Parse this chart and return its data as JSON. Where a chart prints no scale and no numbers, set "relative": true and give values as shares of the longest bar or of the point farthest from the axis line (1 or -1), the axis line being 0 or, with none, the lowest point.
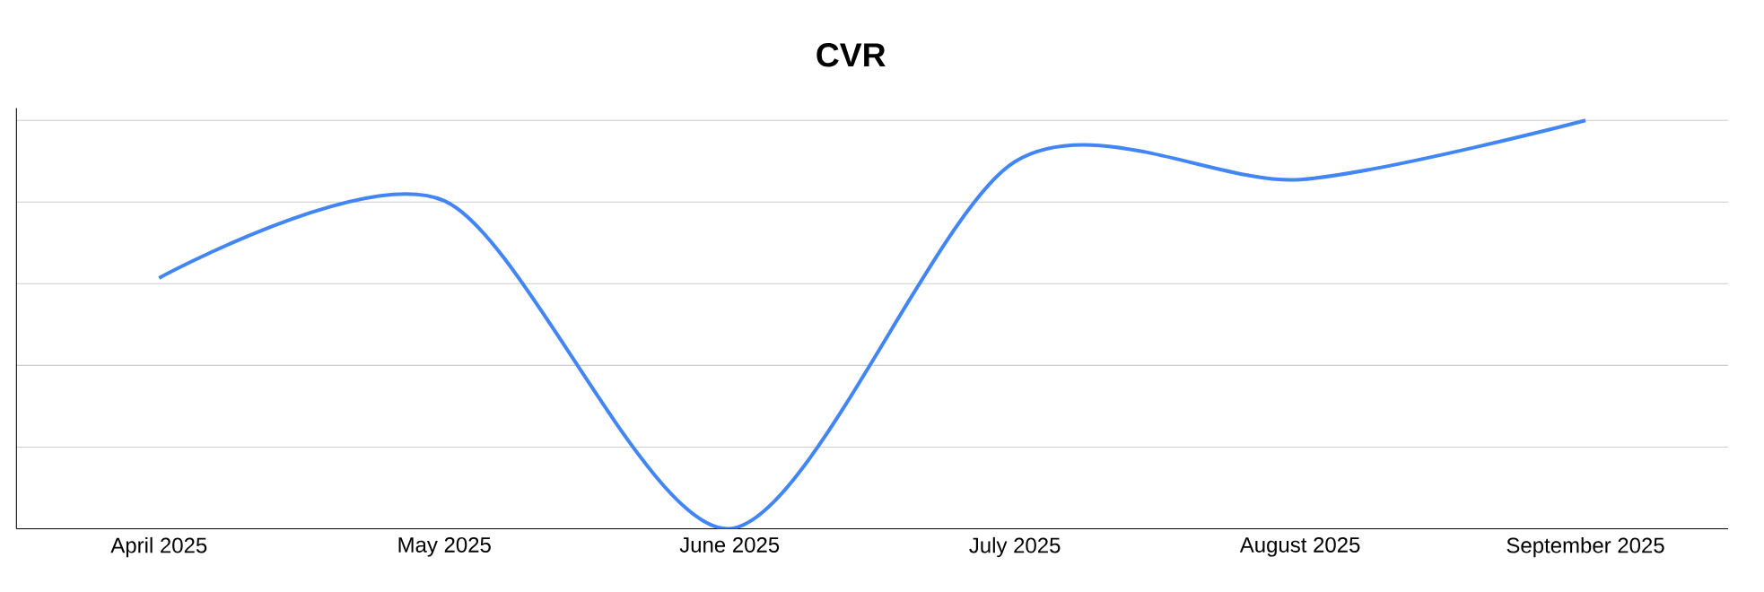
{
  "chart_data": {
    "type": "line",
    "title": "CVR",
    "categories": [
      "April 2025",
      "May 2025",
      "June 2025",
      "July 2025",
      "August 2025",
      "September 2025"
    ],
    "values": [
      0.614,
      0.803,
      0,
      0.899,
      0.855,
      1
    ],
    "color": "#4285f4",
    "relative": true,
    "grid": "y",
    "marker": "none",
    "line_style": "solid"
  }
}
